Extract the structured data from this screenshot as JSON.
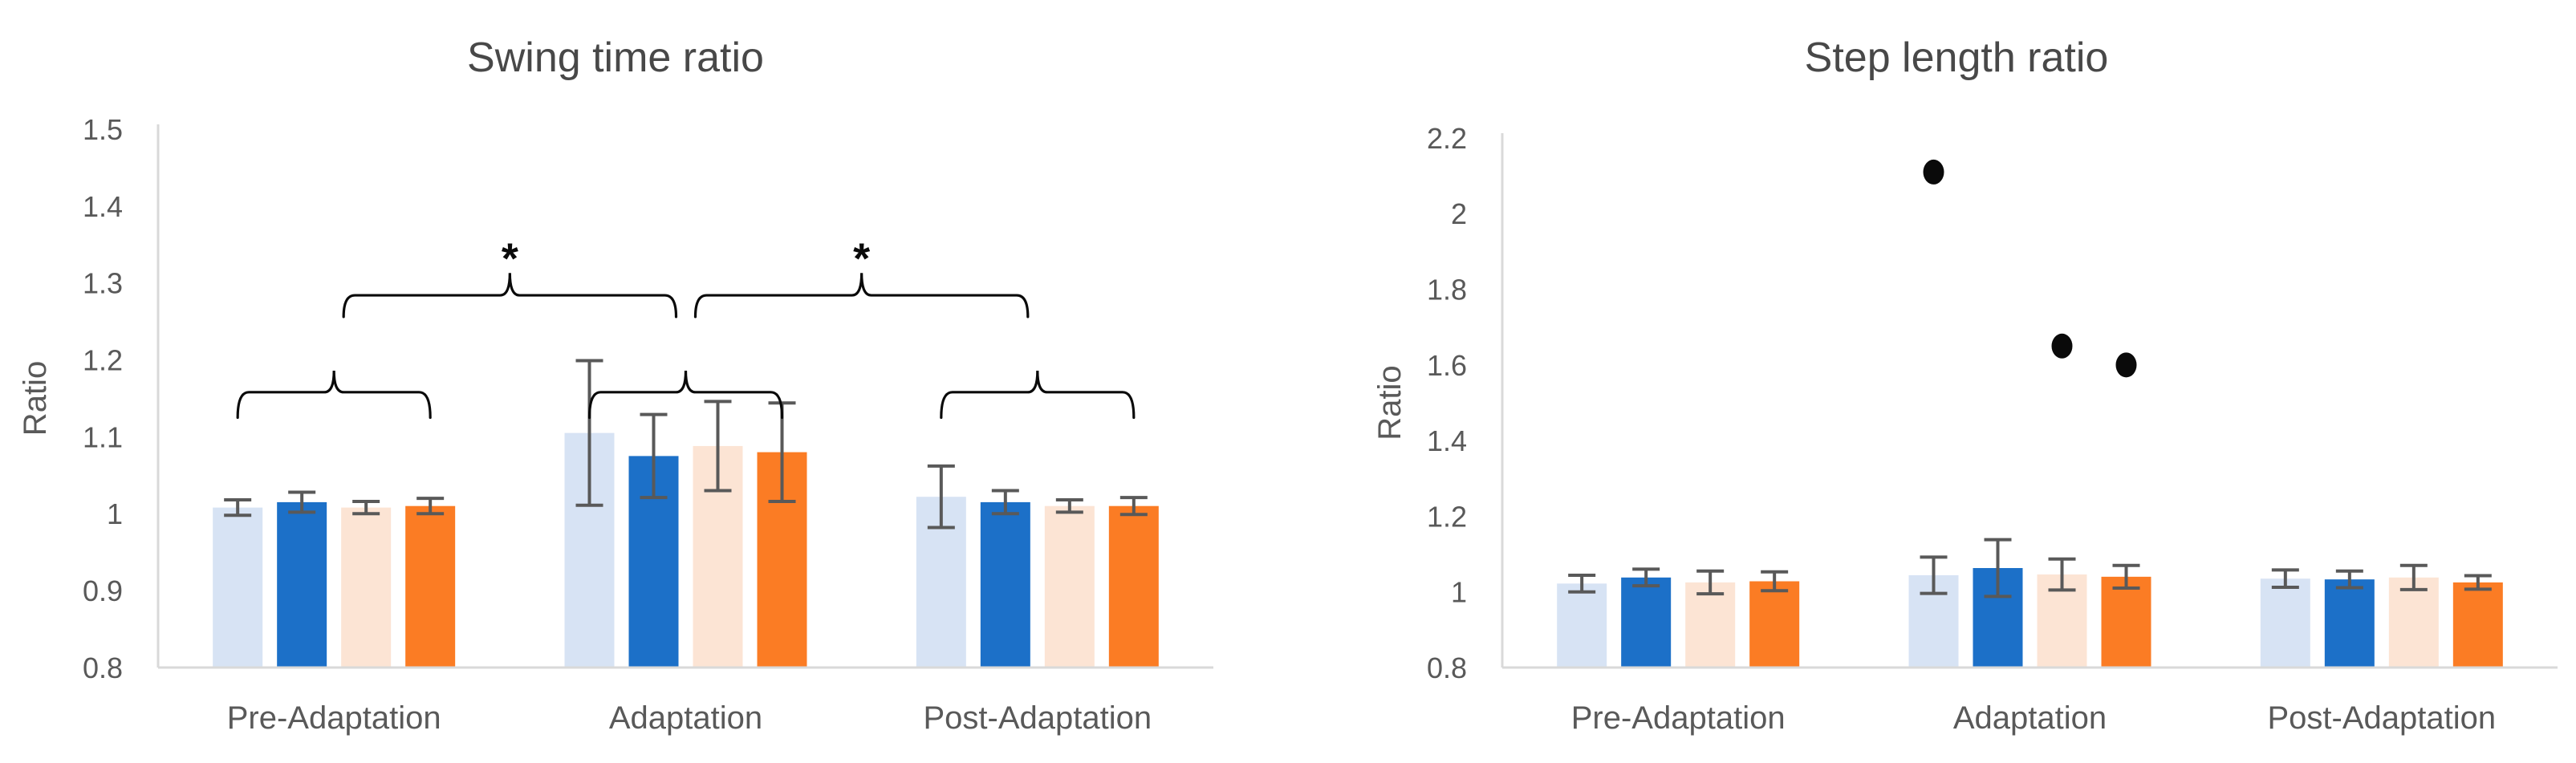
{
  "figure": {
    "background": "#ffffff"
  },
  "style": {
    "axis_line_color": "#d9d9d9",
    "error_bar_color": "#595959",
    "tick_label_color": "#595959",
    "category_label_color": "#595959",
    "title_color": "#484848",
    "ylabel_color": "#595959",
    "annotation_color": "#0a0a0a"
  },
  "chart_data": [
    {
      "type": "bar",
      "title": "Swing time ratio",
      "ylabel": "Ratio",
      "xlabel": "",
      "ylim": [
        0.8,
        1.5
      ],
      "ytick_labels": [
        "0.8",
        "0.9",
        "1",
        "1.1",
        "1.2",
        "1.3",
        "1.4",
        "1.5"
      ],
      "grid": false,
      "legend": "none",
      "categories": [
        "Pre-Adaptation",
        "Adaptation",
        "Post-Adaptation"
      ],
      "series": [
        {
          "name": "light-blue",
          "color": "#d7e3f4",
          "values": [
            1.008,
            1.105,
            1.022
          ],
          "errors": [
            0.01,
            0.094,
            0.04
          ]
        },
        {
          "name": "blue",
          "color": "#1c70c8",
          "values": [
            1.015,
            1.075,
            1.015
          ],
          "errors": [
            0.013,
            0.054,
            0.015
          ]
        },
        {
          "name": "light-orange",
          "color": "#fce4d4",
          "values": [
            1.008,
            1.088,
            1.01
          ],
          "errors": [
            0.008,
            0.058,
            0.008
          ]
        },
        {
          "name": "orange",
          "color": "#fb7c24",
          "values": [
            1.01,
            1.08,
            1.01
          ],
          "errors": [
            0.01,
            0.064,
            0.011
          ]
        }
      ],
      "significance": {
        "group_brackets": [
          {
            "category": "Pre-Adaptation",
            "label": ""
          },
          {
            "category": "Adaptation",
            "label": ""
          },
          {
            "category": "Post-Adaptation",
            "label": ""
          }
        ],
        "comparison_brackets": [
          {
            "from": "Pre-Adaptation",
            "to": "Adaptation",
            "label": "*"
          },
          {
            "from": "Adaptation",
            "to": "Post-Adaptation",
            "label": "*"
          }
        ]
      }
    },
    {
      "type": "bar",
      "title": "Step length ratio",
      "ylabel": "Ratio",
      "xlabel": "",
      "ylim": [
        0.8,
        2.2
      ],
      "ytick_labels": [
        "0.8",
        "1",
        "1.2",
        "1.4",
        "1.6",
        "1.8",
        "2",
        "2.2"
      ],
      "grid": false,
      "legend": "none",
      "categories": [
        "Pre-Adaptation",
        "Adaptation",
        "Post-Adaptation"
      ],
      "series": [
        {
          "name": "light-blue",
          "color": "#d7e3f4",
          "values": [
            1.022,
            1.044,
            1.035
          ],
          "errors": [
            0.022,
            0.048,
            0.023
          ]
        },
        {
          "name": "blue",
          "color": "#1c70c8",
          "values": [
            1.038,
            1.063,
            1.033
          ],
          "errors": [
            0.022,
            0.075,
            0.022
          ]
        },
        {
          "name": "light-orange",
          "color": "#fce4d4",
          "values": [
            1.025,
            1.046,
            1.038
          ],
          "errors": [
            0.03,
            0.041,
            0.032
          ]
        },
        {
          "name": "orange",
          "color": "#fb7c24",
          "values": [
            1.028,
            1.04,
            1.025
          ],
          "errors": [
            0.025,
            0.03,
            0.018
          ]
        }
      ],
      "outlier_points": [
        {
          "category": "Adaptation",
          "series": "light-blue",
          "value": 2.11
        },
        {
          "category": "Adaptation",
          "series": "light-orange",
          "value": 1.65
        },
        {
          "category": "Adaptation",
          "series": "orange",
          "value": 1.6
        }
      ]
    }
  ]
}
